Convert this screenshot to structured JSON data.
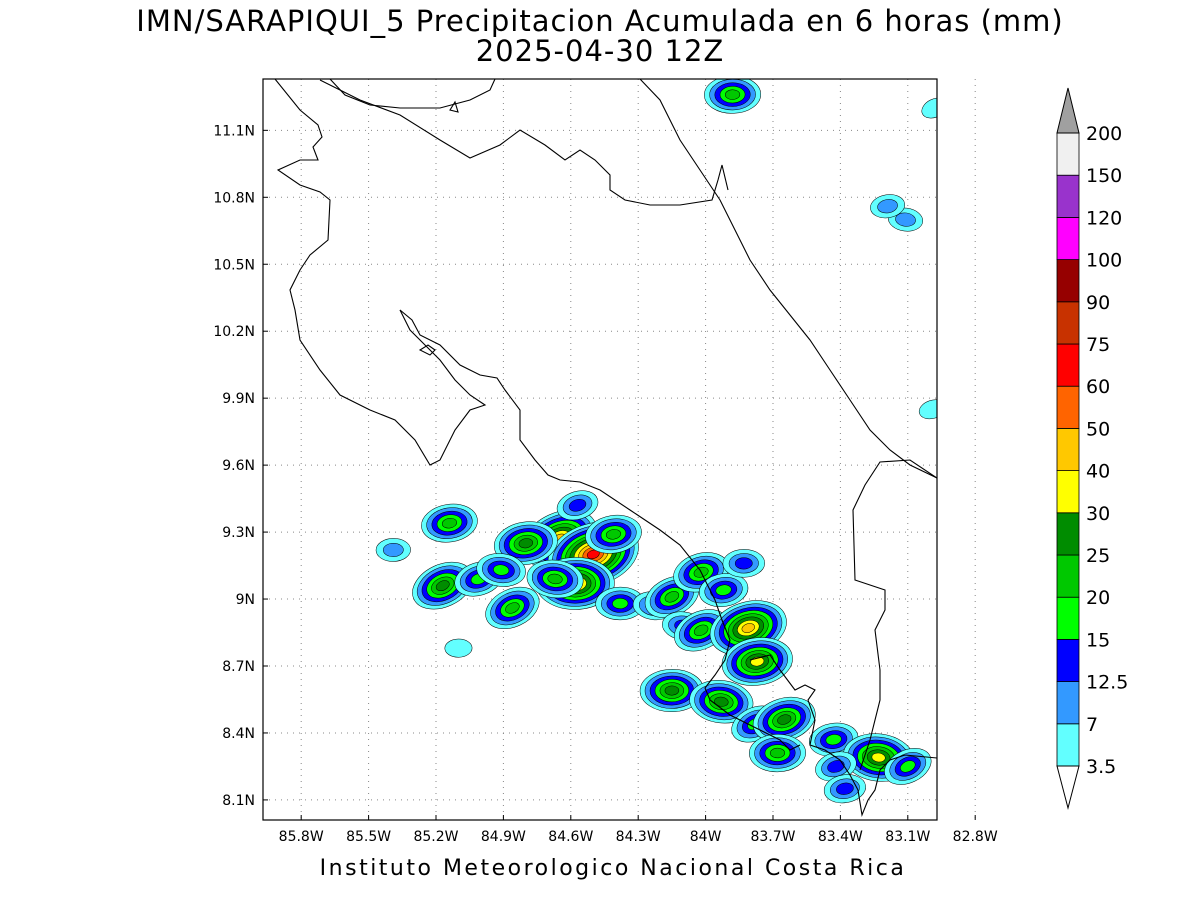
{
  "title_lines": [
    "IMN/SARAPIQUI_5 Precipitacion Acumulada en 6 horas (mm)",
    "2025-04-30 12Z"
  ],
  "footer": "Instituto Meteorologico Nacional Costa Rica",
  "map": {
    "lon_ticks": [
      "85.8W",
      "85.5W",
      "85.2W",
      "84.9W",
      "84.6W",
      "84.3W",
      "84W",
      "83.7W",
      "83.4W",
      "83.1W",
      "82.8W"
    ],
    "lat_ticks": [
      "11.1N",
      "10.8N",
      "10.5N",
      "10.2N",
      "9.9N",
      "9.6N",
      "9.3N",
      "9N",
      "8.7N",
      "8.4N",
      "8.1N"
    ],
    "grid": "dotted",
    "lon_range": [
      -85.97,
      -82.97
    ],
    "lat_range": [
      8.01,
      11.33
    ]
  },
  "colorbar": {
    "levels": [
      {
        "label": "3.5",
        "color": "#62ffff"
      },
      {
        "label": "7",
        "color": "#3399ff"
      },
      {
        "label": "12.5",
        "color": "#0000ff"
      },
      {
        "label": "15",
        "color": "#00ff00"
      },
      {
        "label": "20",
        "color": "#00c800"
      },
      {
        "label": "25",
        "color": "#008c00"
      },
      {
        "label": "30",
        "color": "#ffff00"
      },
      {
        "label": "40",
        "color": "#ffc800"
      },
      {
        "label": "50",
        "color": "#ff6400"
      },
      {
        "label": "60",
        "color": "#ff0000"
      },
      {
        "label": "75",
        "color": "#c83200"
      },
      {
        "label": "90",
        "color": "#960000"
      },
      {
        "label": "100",
        "color": "#ff00ff"
      },
      {
        "label": "120",
        "color": "#9933cc"
      },
      {
        "label": "150",
        "color": "#f0f0f0"
      },
      {
        "label": "200",
        "color": "#a0a0a0"
      }
    ]
  },
  "precip_cells": [
    {
      "lon": -84.65,
      "lat": 9.27,
      "level": 7
    },
    {
      "lon": -84.5,
      "lat": 9.2,
      "level": 9
    },
    {
      "lon": -84.8,
      "lat": 9.25,
      "level": 5
    },
    {
      "lon": -84.58,
      "lat": 9.07,
      "level": 7
    },
    {
      "lon": -84.67,
      "lat": 9.09,
      "level": 4
    },
    {
      "lon": -85.17,
      "lat": 9.06,
      "level": 5
    },
    {
      "lon": -85.01,
      "lat": 9.09,
      "level": 3
    },
    {
      "lon": -85.14,
      "lat": 9.34,
      "level": 4
    },
    {
      "lon": -85.39,
      "lat": 9.22,
      "level": 1
    },
    {
      "lon": -84.91,
      "lat": 9.13,
      "level": 3
    },
    {
      "lon": -84.86,
      "lat": 8.96,
      "level": 4
    },
    {
      "lon": -84.57,
      "lat": 9.42,
      "level": 2
    },
    {
      "lon": -84.41,
      "lat": 9.29,
      "level": 4
    },
    {
      "lon": -84.38,
      "lat": 8.98,
      "level": 3
    },
    {
      "lon": -84.23,
      "lat": 8.97,
      "level": 2
    },
    {
      "lon": -84.15,
      "lat": 9.01,
      "level": 4
    },
    {
      "lon": -84.02,
      "lat": 9.12,
      "level": 4
    },
    {
      "lon": -83.92,
      "lat": 9.04,
      "level": 3
    },
    {
      "lon": -83.83,
      "lat": 9.16,
      "level": 2
    },
    {
      "lon": -84.1,
      "lat": 8.88,
      "level": 2
    },
    {
      "lon": -84.02,
      "lat": 8.86,
      "level": 4
    },
    {
      "lon": -83.81,
      "lat": 8.87,
      "level": 7
    },
    {
      "lon": -83.77,
      "lat": 8.72,
      "level": 6
    },
    {
      "lon": -84.15,
      "lat": 8.59,
      "level": 5
    },
    {
      "lon": -83.93,
      "lat": 8.54,
      "level": 5
    },
    {
      "lon": -83.78,
      "lat": 8.44,
      "level": 3
    },
    {
      "lon": -83.65,
      "lat": 8.46,
      "level": 5
    },
    {
      "lon": -83.43,
      "lat": 8.37,
      "level": 3
    },
    {
      "lon": -83.68,
      "lat": 8.31,
      "level": 4
    },
    {
      "lon": -83.23,
      "lat": 8.29,
      "level": 6
    },
    {
      "lon": -83.1,
      "lat": 8.25,
      "level": 3
    },
    {
      "lon": -83.42,
      "lat": 8.25,
      "level": 2
    },
    {
      "lon": -83.38,
      "lat": 8.15,
      "level": 2
    },
    {
      "lon": -83.88,
      "lat": 11.26,
      "level": 4
    },
    {
      "lon": -83.11,
      "lat": 10.7,
      "level": 1
    },
    {
      "lon": -82.98,
      "lat": 11.2,
      "level": 0
    },
    {
      "lon": -82.99,
      "lat": 9.85,
      "level": 0
    },
    {
      "lon": -83.19,
      "lat": 10.76,
      "level": 1
    },
    {
      "lon": -85.1,
      "lat": 8.78,
      "level": 0
    }
  ]
}
